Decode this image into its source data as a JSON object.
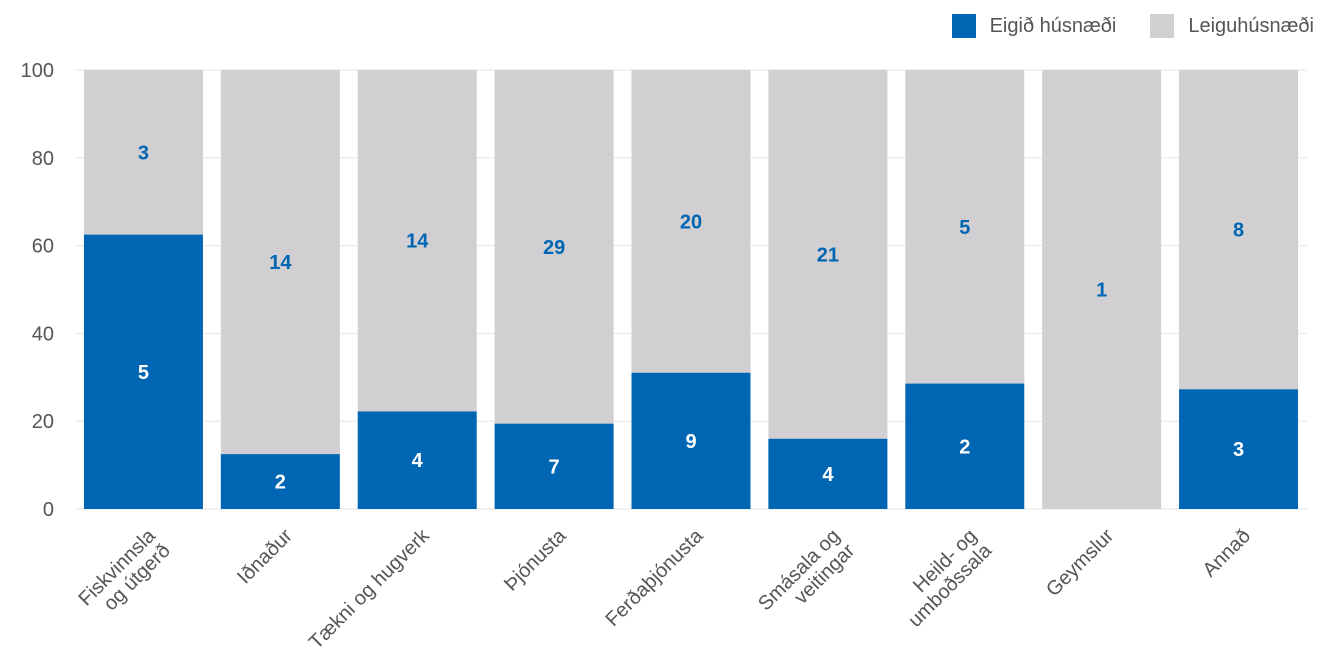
{
  "chart_data": {
    "type": "bar",
    "stacked": true,
    "percent_scale": true,
    "categories": [
      [
        "Fiskvinnsla",
        "og útgerð"
      ],
      [
        "Iðnaður"
      ],
      [
        "Tækni og hugverk"
      ],
      [
        "Þjónusta"
      ],
      [
        "Ferðaþjónusta"
      ],
      [
        "Smásala og",
        "veitingar"
      ],
      [
        "Heild- og",
        "umboðssala"
      ],
      [
        "Geymslur"
      ],
      [
        "Annað"
      ]
    ],
    "series": [
      {
        "name": "Eigið húsnæði",
        "color": "#0066b3",
        "counts": [
          5,
          2,
          4,
          7,
          9,
          4,
          2,
          0,
          3
        ],
        "labels": [
          "5",
          "2",
          "4",
          "7",
          "9",
          "4",
          "2",
          "",
          "3"
        ]
      },
      {
        "name": "Leiguhúsnæði",
        "color": "#d1cfd1",
        "counts": [
          3,
          14,
          14,
          29,
          20,
          21,
          5,
          1,
          8
        ],
        "labels": [
          "3",
          "14",
          "14",
          "29",
          "20",
          "21",
          "5",
          "1",
          "8"
        ]
      }
    ],
    "ylim": [
      0,
      100
    ],
    "yticks": [
      "0",
      "20",
      "40",
      "60",
      "80",
      "100"
    ],
    "grid": true,
    "legend_position": "top-right"
  },
  "colors": {
    "own_label": "#ffffff",
    "rent_label": "#0066b3",
    "axis_text": "#555555",
    "grid": "#e6e6e6"
  }
}
